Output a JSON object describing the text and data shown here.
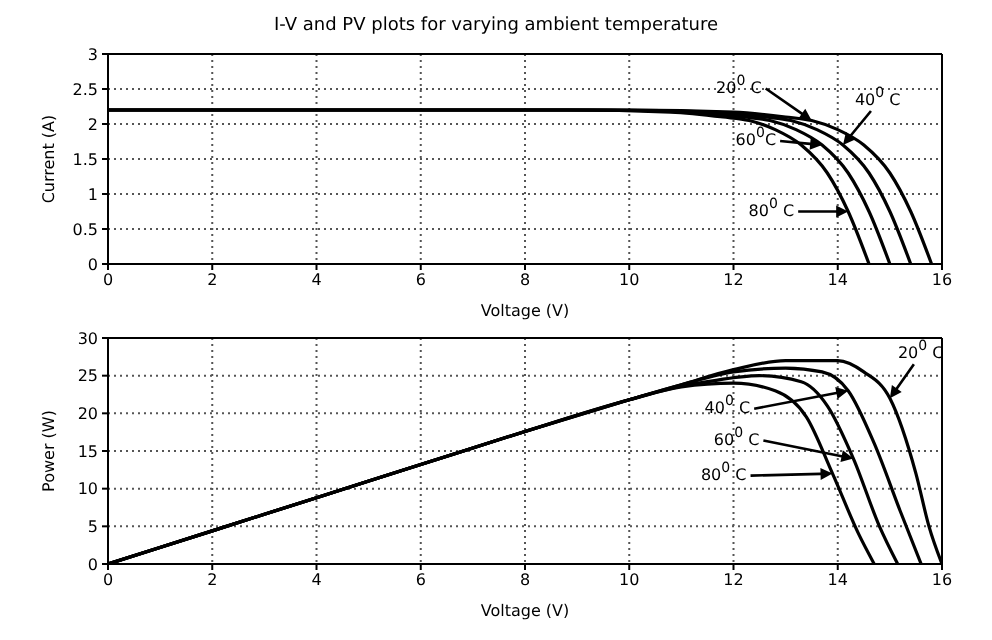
{
  "chart_data": [
    {
      "type": "line",
      "title": "I-V and PV plots for varying ambient temperature",
      "xlabel": "Voltage (V)",
      "ylabel": "Current (A)",
      "xlim": [
        0,
        16
      ],
      "ylim": [
        0,
        3
      ],
      "xticks": [
        0,
        2,
        4,
        6,
        8,
        10,
        12,
        14,
        16
      ],
      "yticks": [
        0,
        0.5,
        1,
        1.5,
        2,
        2.5,
        3
      ],
      "grid": true,
      "series": [
        {
          "color": "#000000",
          "x": [
            0,
            10,
            12,
            13,
            13.5,
            14,
            14.5,
            15,
            15.4,
            15.8
          ],
          "values": [
            2.2,
            2.2,
            2.17,
            2.1,
            2.05,
            1.92,
            1.7,
            1.3,
            0.75,
            0
          ]
        },
        {
          "color": "#000000",
          "x": [
            0,
            9.6,
            11.6,
            12.6,
            13.1,
            13.6,
            14.1,
            14.6,
            15,
            15.4
          ],
          "values": [
            2.2,
            2.2,
            2.17,
            2.1,
            2.05,
            1.92,
            1.7,
            1.3,
            0.75,
            0
          ]
        },
        {
          "color": "#000000",
          "x": [
            0,
            9.2,
            11.2,
            12.2,
            12.7,
            13.2,
            13.7,
            14.2,
            14.6,
            15
          ],
          "values": [
            2.2,
            2.2,
            2.17,
            2.1,
            2.05,
            1.92,
            1.7,
            1.3,
            0.75,
            0
          ]
        },
        {
          "color": "#000000",
          "x": [
            0,
            8.8,
            10.8,
            11.8,
            12.3,
            12.8,
            13.3,
            13.8,
            14.2,
            14.6
          ],
          "values": [
            2.2,
            2.2,
            2.17,
            2.1,
            2.05,
            1.92,
            1.7,
            1.3,
            0.75,
            0
          ]
        }
      ],
      "annotations": [
        "20$^{0}$ C",
        "40$^{0}$ C",
        "60$^{0}$C",
        "80$^{0}$ C"
      ]
    },
    {
      "type": "line",
      "xlabel": "Voltage (V)",
      "ylabel": "Power (W)",
      "xlim": [
        0,
        16
      ],
      "ylim": [
        0,
        30
      ],
      "xticks": [
        0,
        2,
        4,
        6,
        8,
        10,
        12,
        14,
        16
      ],
      "yticks": [
        0,
        5,
        10,
        15,
        20,
        25,
        30
      ],
      "grid": true,
      "series": [
        {
          "color": "#000000",
          "x": [
            0,
            2,
            4,
            6,
            8,
            10,
            11,
            12,
            13,
            14,
            14.5,
            15,
            15.5,
            15.75,
            16
          ],
          "values": [
            0,
            4.4,
            8.8,
            13.2,
            17.6,
            21.8,
            23.8,
            25.8,
            27,
            27,
            25.5,
            22,
            12,
            5,
            0
          ]
        },
        {
          "color": "#000000",
          "x": [
            0,
            2,
            4,
            6,
            8,
            10,
            11,
            12,
            13,
            13.7,
            14.2,
            14.7,
            15.2,
            15.6
          ],
          "values": [
            0,
            4.4,
            8.8,
            13.2,
            17.6,
            21.8,
            23.8,
            25.5,
            26,
            25.5,
            23,
            16,
            7,
            0
          ]
        },
        {
          "color": "#000000",
          "x": [
            0,
            2,
            4,
            6,
            8,
            10,
            11,
            11.5,
            12.5,
            13.3,
            13.8,
            14.3,
            14.8,
            15.15
          ],
          "values": [
            0,
            4.4,
            8.8,
            13.2,
            17.6,
            21.8,
            23.6,
            24.2,
            25,
            24.2,
            21,
            14,
            5,
            0
          ]
        },
        {
          "color": "#000000",
          "x": [
            0,
            2,
            4,
            6,
            8,
            10,
            11,
            12,
            12.8,
            13.4,
            13.9,
            14.4,
            14.7
          ],
          "values": [
            0,
            4.4,
            8.8,
            13.2,
            17.6,
            21.8,
            23.5,
            24,
            23,
            19.5,
            12,
            4,
            0
          ]
        }
      ],
      "annotations": [
        "20$^{0}$ C",
        "40$^{0}$ C",
        "60$^{0}$ C",
        "80$^{0}$ C"
      ]
    }
  ]
}
